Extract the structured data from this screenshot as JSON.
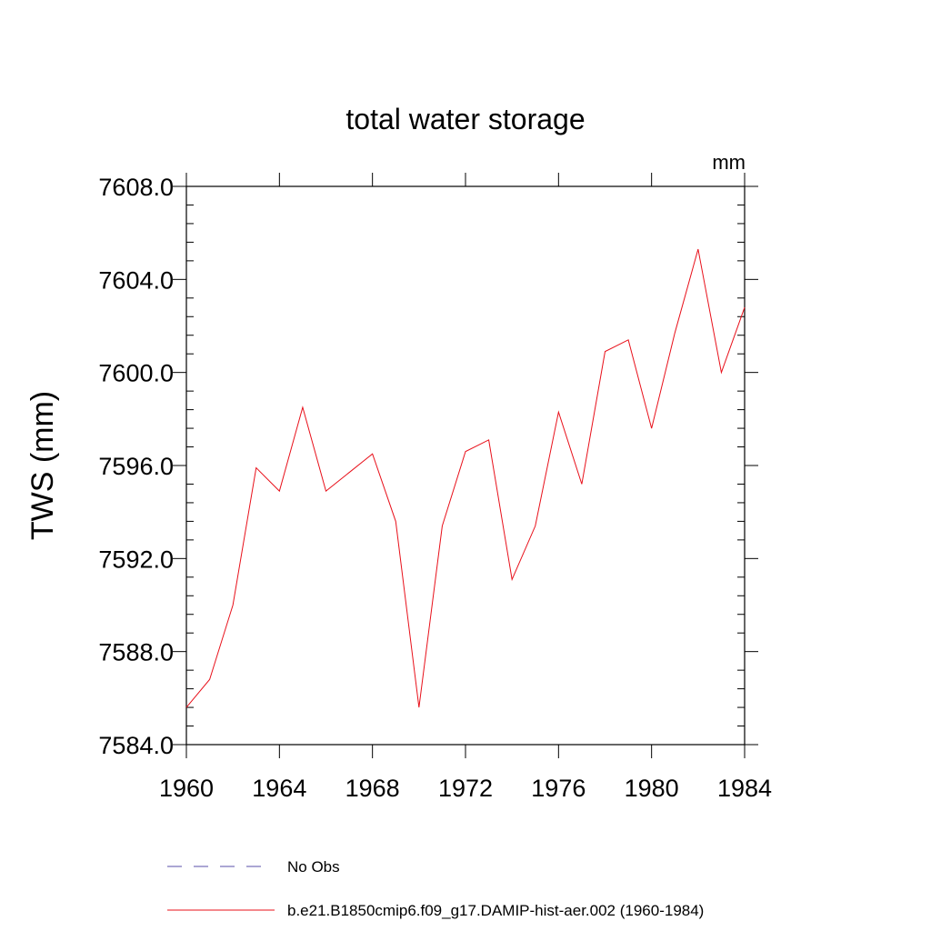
{
  "chart_data": {
    "type": "line",
    "title": "total water storage",
    "units_label": "mm",
    "ylabel": "TWS  (mm)",
    "xlabel": "",
    "xlim": [
      1960,
      1984
    ],
    "ylim": [
      7584.0,
      7608.0
    ],
    "x_ticks": [
      1960,
      1964,
      1968,
      1972,
      1976,
      1980,
      1984
    ],
    "x_tick_labels": [
      "1960",
      "1964",
      "1968",
      "1972",
      "1976",
      "1980",
      "1984"
    ],
    "y_ticks": [
      7584.0,
      7588.0,
      7592.0,
      7596.0,
      7600.0,
      7604.0,
      7608.0
    ],
    "y_tick_labels": [
      "7584.0",
      "7588.0",
      "7592.0",
      "7596.0",
      "7600.0",
      "7604.0",
      "7608.0"
    ],
    "grid": false,
    "legend_placement": "bottom",
    "series": [
      {
        "name": "No Obs",
        "style": "dashed",
        "color": "#5a4fa8",
        "x": [],
        "values": []
      },
      {
        "name": "b.e21.B1850cmip6.f09_g17.DAMIP-hist-aer.002 (1960-1984)",
        "style": "solid",
        "color": "#e8101a",
        "x": [
          1960,
          1961,
          1962,
          1963,
          1964,
          1965,
          1966,
          1967,
          1968,
          1969,
          1970,
          1971,
          1972,
          1973,
          1974,
          1975,
          1976,
          1977,
          1978,
          1979,
          1980,
          1981,
          1982,
          1983,
          1984
        ],
        "values": [
          7585.6,
          7586.8,
          7590.0,
          7595.9,
          7594.9,
          7598.5,
          7594.9,
          7595.7,
          7596.5,
          7593.6,
          7585.6,
          7593.4,
          7596.6,
          7597.1,
          7591.1,
          7593.4,
          7598.3,
          7595.2,
          7600.9,
          7601.4,
          7597.6,
          7601.7,
          7605.3,
          7600.0,
          7602.8
        ]
      }
    ]
  }
}
